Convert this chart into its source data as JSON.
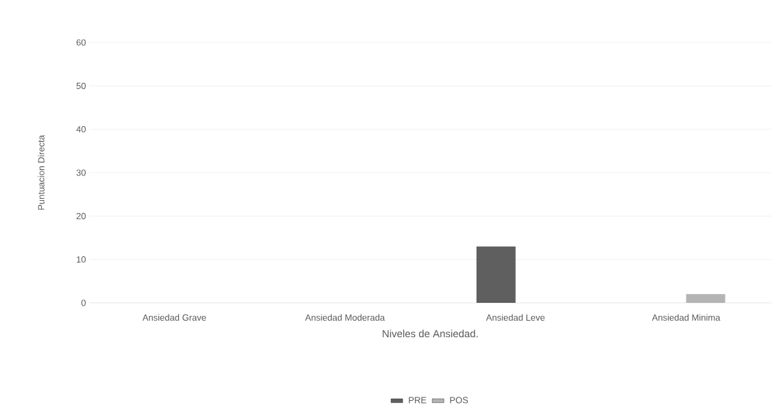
{
  "chart_data": {
    "type": "bar",
    "xlabel": "Niveles de Ansiedad.",
    "ylabel": "Puntuacion Directa",
    "categories": [
      "Ansiedad Grave",
      "Ansiedad  Moderada",
      "Ansiedad Leve",
      "Ansiedad Minima"
    ],
    "series": [
      {
        "name": "PRE",
        "color": "#5f5f5f",
        "values": [
          0,
          0,
          13,
          0
        ]
      },
      {
        "name": "POS",
        "color": "#b4b4b4",
        "values": [
          0,
          0,
          0,
          2
        ]
      }
    ],
    "ylim": [
      0,
      60
    ],
    "yticks": [
      0,
      10,
      20,
      30,
      40,
      50,
      60
    ],
    "grid": "y",
    "legend": "bottom"
  }
}
